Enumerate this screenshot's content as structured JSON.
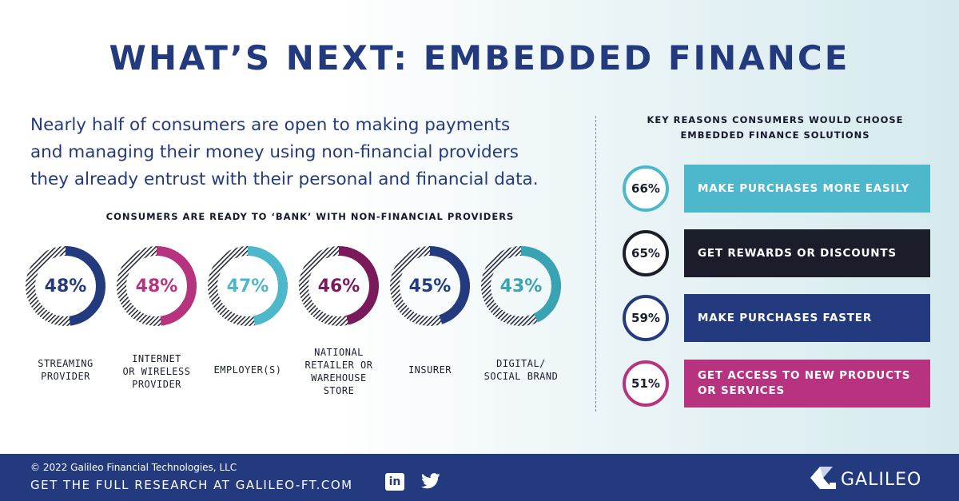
{
  "title": "WHAT’S NEXT: EMBEDDED FINANCE",
  "intro": {
    "line1": "Nearly half of consumers are open to making payments",
    "line2": "and managing their money using non-financial providers",
    "line3": "they already entrust with their personal and financial data."
  },
  "chart_data": [
    {
      "type": "pie",
      "title": "CONSUMERS ARE READY TO ‘BANK’ WITH NON-FINANCIAL PROVIDERS",
      "categories": [
        "STREAMING PROVIDER",
        "INTERNET OR WIRELESS PROVIDER",
        "EMPLOYER(S)",
        "NATIONAL RETAILER OR WAREHOUSE STORE",
        "INSURER",
        "DIGITAL/ SOCIAL BRAND"
      ],
      "values": [
        48,
        48,
        47,
        46,
        45,
        43
      ],
      "labels": [
        "48%",
        "48%",
        "47%",
        "46%",
        "45%",
        "43%"
      ],
      "colors": [
        "#243a7e",
        "#b8337f",
        "#4db8cc",
        "#7a1a5a",
        "#243a7e",
        "#3aa3b3"
      ],
      "label_lines": [
        [
          "STREAMING",
          "PROVIDER"
        ],
        [
          "INTERNET",
          "OR WIRELESS",
          "PROVIDER"
        ],
        [
          "EMPLOYER(S)"
        ],
        [
          "NATIONAL",
          "RETAILER OR",
          "WAREHOUSE",
          "STORE"
        ],
        [
          "INSURER"
        ],
        [
          "DIGITAL/",
          "SOCIAL BRAND"
        ]
      ]
    },
    {
      "type": "bar",
      "title": "KEY REASONS CONSUMERS WOULD CHOOSE EMBEDDED FINANCE SOLUTIONS",
      "categories": [
        "MAKE PURCHASES MORE EASILY",
        "GET REWARDS OR DISCOUNTS",
        "MAKE PURCHASES FASTER",
        "GET ACCESS TO NEW PRODUCTS OR SERVICES"
      ],
      "values": [
        66,
        65,
        59,
        51
      ],
      "labels": [
        "66%",
        "65%",
        "59%",
        "51%"
      ],
      "colors": [
        "#4db8cc",
        "#1b1d2a",
        "#243a7e",
        "#b8337f"
      ]
    }
  ],
  "right": {
    "subhead_line1": "KEY REASONS CONSUMERS WOULD CHOOSE",
    "subhead_line2": "EMBEDDED FINANCE SOLUTIONS",
    "reasons": [
      {
        "pct": "66%",
        "lines": [
          "MAKE PURCHASES MORE EASILY"
        ]
      },
      {
        "pct": "65%",
        "lines": [
          "GET REWARDS OR DISCOUNTS"
        ]
      },
      {
        "pct": "59%",
        "lines": [
          "MAKE PURCHASES FASTER"
        ]
      },
      {
        "pct": "51%",
        "lines": [
          "GET ACCESS TO NEW PRODUCTS",
          "OR SERVICES"
        ]
      }
    ]
  },
  "footer": {
    "copyright": "© 2022 Galileo Financial Technologies, LLC",
    "cta": "GET THE FULL RESEARCH AT GALILEO-FT.COM",
    "linkedin_icon": "linkedin-icon",
    "twitter_icon": "twitter-icon",
    "logo_text": "GALILEO",
    "background": "#243a7e"
  }
}
